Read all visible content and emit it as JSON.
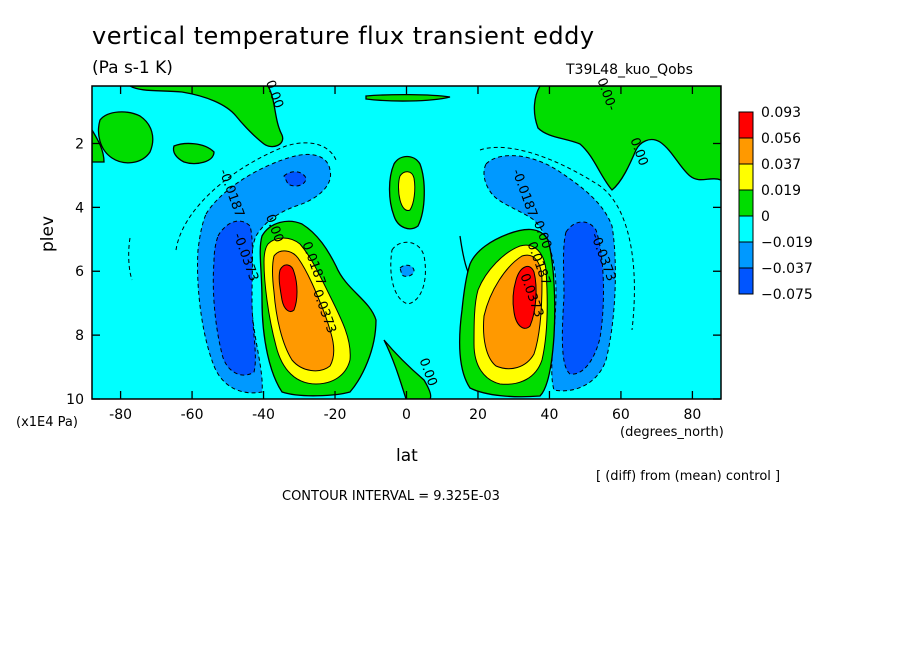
{
  "chart_data": {
    "type": "heatmap",
    "title": "vertical temperature flux transient eddy",
    "units": "(Pa s-1 K)",
    "run_name": "T39L48_kuo_Qobs",
    "diff_note": "[ (diff) from (mean) control ]",
    "contour_interval": "CONTOUR INTERVAL = 9.325E-03",
    "xlabel": "lat",
    "ylabel": "plev",
    "x_unit": "(degrees_north)",
    "y_unit": "(x1E4 Pa)",
    "xlim": [
      -88,
      88
    ],
    "ylim": [
      10,
      0.2
    ],
    "x_ticks": [
      -80,
      -60,
      -40,
      -20,
      0,
      20,
      40,
      60,
      80
    ],
    "y_ticks": [
      2,
      4,
      6,
      8,
      10
    ],
    "colorbar": {
      "labels": [
        "0.093",
        "0.056",
        "0.037",
        "0.019",
        "0",
        "−0.019",
        "−0.037",
        "−0.075"
      ],
      "colors": [
        "#ff0000",
        "#ff9900",
        "#ffff00",
        "#00dd00",
        "#00ffff",
        "#0099ff",
        "#0055ff"
      ]
    },
    "contour_labels": [
      {
        "text": "0.00",
        "lat": -38,
        "plev": 0.5
      },
      {
        "text": "0.00-",
        "lat": 55,
        "plev": 0.5
      },
      {
        "text": "0.00",
        "lat": 64,
        "plev": 2.3
      },
      {
        "text": "-0.0187",
        "lat": -50,
        "plev": 3.6
      },
      {
        "text": "-0.0187",
        "lat": 32,
        "plev": 3.6
      },
      {
        "text": "-0.0373",
        "lat": -46,
        "plev": 5.6
      },
      {
        "text": "-0.0373",
        "lat": 54,
        "plev": 5.6
      },
      {
        "text": "0.00",
        "lat": -38,
        "plev": 4.7
      },
      {
        "text": "0.0187",
        "lat": -27,
        "plev": 5.8
      },
      {
        "text": "0.0373",
        "lat": -24,
        "plev": 7.3
      },
      {
        "text": "0.00",
        "lat": 37,
        "plev": 4.9
      },
      {
        "text": "0.0187",
        "lat": 36,
        "plev": 5.8
      },
      {
        "text": "0.0373",
        "lat": 34,
        "plev": 6.8
      },
      {
        "text": "0.00",
        "lat": 5,
        "plev": 9.2
      }
    ]
  }
}
